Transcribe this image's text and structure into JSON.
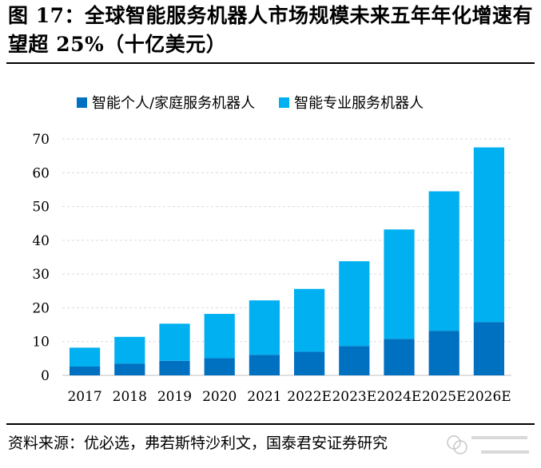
{
  "figure": {
    "title": "图 17：全球智能服务机器人市场规模未来五年年化增速有望超 25%（十亿美元）",
    "source": "资料来源：优必选，弗若斯特沙利文，国泰君安证券研究"
  },
  "chart_data": {
    "type": "bar",
    "stacked": true,
    "categories": [
      "2017",
      "2018",
      "2019",
      "2020",
      "2021",
      "2022E",
      "2023E",
      "2024E",
      "2025E",
      "2026E"
    ],
    "series": [
      {
        "name": "智能个人/家庭服务机器人",
        "values": [
          2.6,
          3.5,
          4.3,
          5.1,
          6.1,
          7.0,
          8.7,
          10.8,
          13.2,
          15.8
        ],
        "color": "#0070C0"
      },
      {
        "name": "智能专业服务机器人",
        "values": [
          5.6,
          7.9,
          11.0,
          13.1,
          16.1,
          18.6,
          25.1,
          32.4,
          41.3,
          51.7
        ],
        "color": "#00B0F0"
      }
    ],
    "ylim": [
      0,
      70
    ],
    "yticks": [
      0,
      10,
      20,
      30,
      40,
      50,
      60,
      70
    ],
    "grid": true,
    "legend_position": "top"
  }
}
